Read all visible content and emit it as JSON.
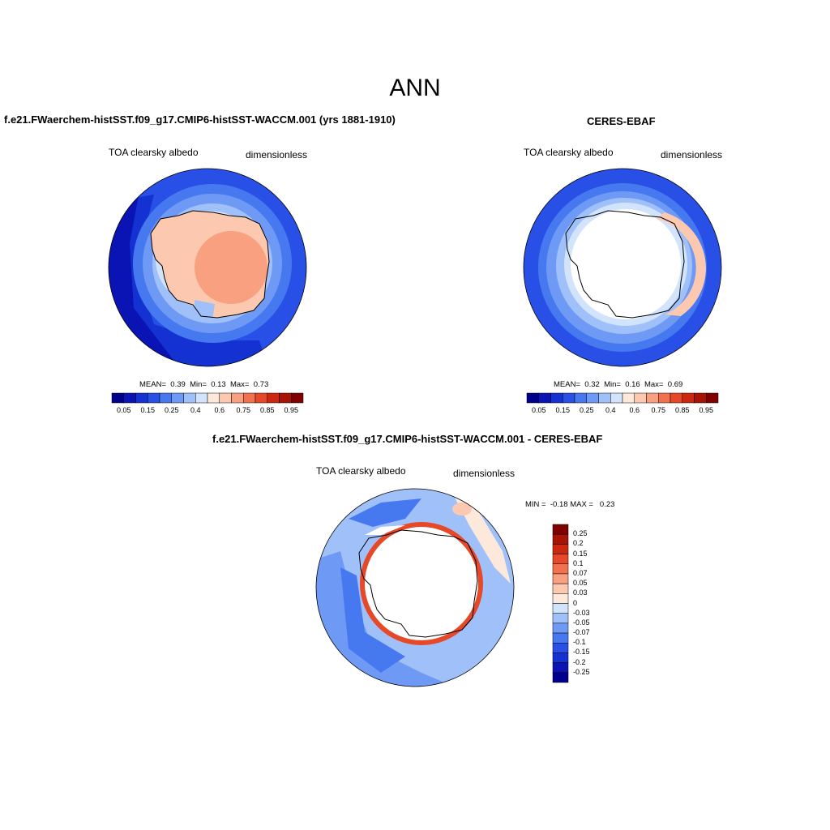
{
  "page_title": "ANN",
  "panels": [
    {
      "title": "f.e21.FWaerchem-histSST.f09_g17.CMIP6-histSST-WACCM.001 (yrs 1881-1910)",
      "variable": "TOA clearsky albedo",
      "units": "dimensionless",
      "stats": {
        "mean_label": "MEAN=",
        "mean": "0.39",
        "min_label": "Min=",
        "min": "0.13",
        "max_label": "Max=",
        "max": "0.73"
      }
    },
    {
      "title": "CERES-EBAF",
      "variable": "TOA clearsky albedo",
      "units": "dimensionless",
      "stats": {
        "mean_label": "MEAN=",
        "mean": "0.32",
        "min_label": "Min=",
        "min": "0.16",
        "max_label": "Max=",
        "max": "0.69"
      }
    },
    {
      "title": "f.e21.FWaerchem-histSST.f09_g17.CMIP6-histSST-WACCM.001 - CERES-EBAF",
      "variable": "TOA clearsky albedo",
      "units": "dimensionless",
      "stats": {
        "min_label": "MIN =",
        "min": "-0.18",
        "max_label": "MAX =",
        "max": "0.23"
      }
    }
  ],
  "colorbar_horizontal": {
    "colors": [
      "#00008c",
      "#0a14b4",
      "#1432d2",
      "#2850e6",
      "#4678f0",
      "#6e9af6",
      "#a0c0fa",
      "#d2e4fc",
      "#fde8dc",
      "#fcc8b0",
      "#f8a080",
      "#f27250",
      "#e64828",
      "#cc2810",
      "#a81404",
      "#800000"
    ],
    "tick_labels": [
      "0.05",
      "0.15",
      "0.25",
      "0.4",
      "0.6",
      "0.75",
      "0.85",
      "0.95"
    ]
  },
  "colorbar_vertical": {
    "colors": [
      "#800000",
      "#a81404",
      "#cc2810",
      "#e64828",
      "#f27250",
      "#f8a080",
      "#fcc8b0",
      "#fde8dc",
      "#d2e4fc",
      "#a0c0fa",
      "#6e9af6",
      "#4678f0",
      "#2850e6",
      "#1432d2",
      "#0a14b4",
      "#00008c"
    ],
    "tick_labels": [
      "0.25",
      "0.2",
      "0.15",
      "0.1",
      "0.07",
      "0.05",
      "0.03",
      "0",
      "-0.03",
      "-0.05",
      "-0.07",
      "-0.1",
      "-0.15",
      "-0.2",
      "-0.25"
    ]
  }
}
